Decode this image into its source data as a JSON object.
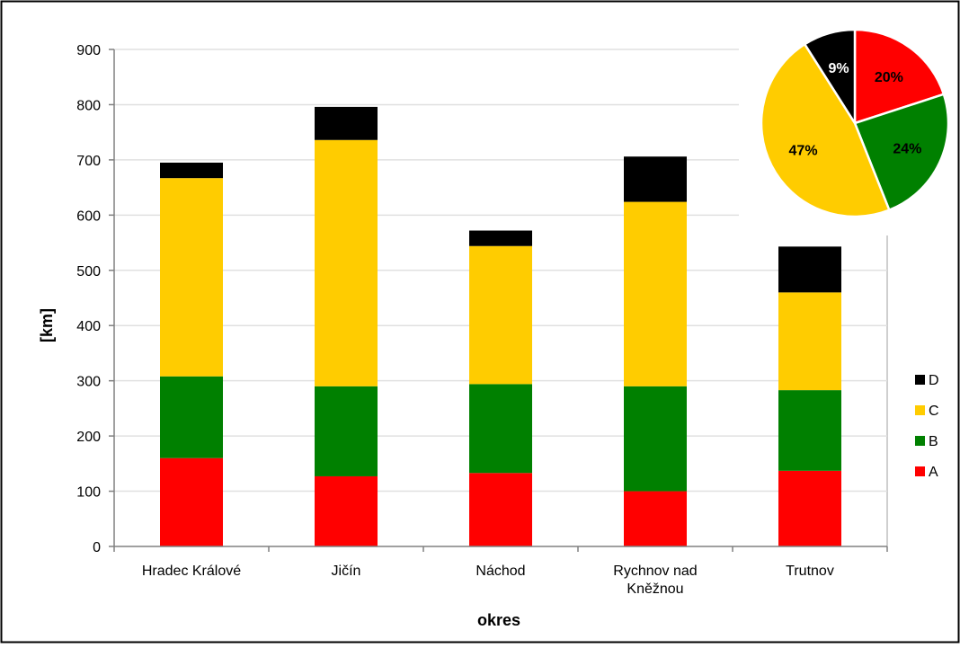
{
  "chart_data": [
    {
      "type": "bar",
      "stacked": true,
      "categories": [
        "Hradec Králové",
        "Jičín",
        "Náchod",
        "Rychnov nad Kněžnou",
        "Trutnov"
      ],
      "category_lines": [
        [
          "Hradec Králové"
        ],
        [
          "Jičín"
        ],
        [
          "Náchod"
        ],
        [
          "Rychnov nad",
          "Kněžnou"
        ],
        [
          "Trutnov"
        ]
      ],
      "series": [
        {
          "name": "A",
          "color": "#ff0000",
          "values": [
            160,
            127,
            133,
            100,
            137
          ]
        },
        {
          "name": "B",
          "color": "#008000",
          "values": [
            148,
            163,
            161,
            190,
            146
          ]
        },
        {
          "name": "C",
          "color": "#ffcc00",
          "values": [
            359,
            446,
            250,
            334,
            177
          ]
        },
        {
          "name": "D",
          "color": "#000000",
          "values": [
            28,
            60,
            28,
            82,
            83
          ]
        }
      ],
      "xlabel": "okres",
      "ylabel": "[km]",
      "ylim": [
        0,
        900
      ],
      "yticks": [
        0,
        100,
        200,
        300,
        400,
        500,
        600,
        700,
        800,
        900
      ],
      "grid": true,
      "legend": "right",
      "legend_order": [
        "D",
        "C",
        "B",
        "A"
      ]
    },
    {
      "type": "pie",
      "slices": [
        {
          "name": "A",
          "label": "20%",
          "value": 20,
          "color": "#ff0000",
          "label_color": "#000000"
        },
        {
          "name": "B",
          "label": "24%",
          "value": 24,
          "color": "#008000",
          "label_color": "#000000"
        },
        {
          "name": "C",
          "label": "47%",
          "value": 47,
          "color": "#ffcc00",
          "label_color": "#000000"
        },
        {
          "name": "D",
          "label": "9%",
          "value": 9,
          "color": "#000000",
          "label_color": "#ffffff"
        }
      ]
    }
  ]
}
